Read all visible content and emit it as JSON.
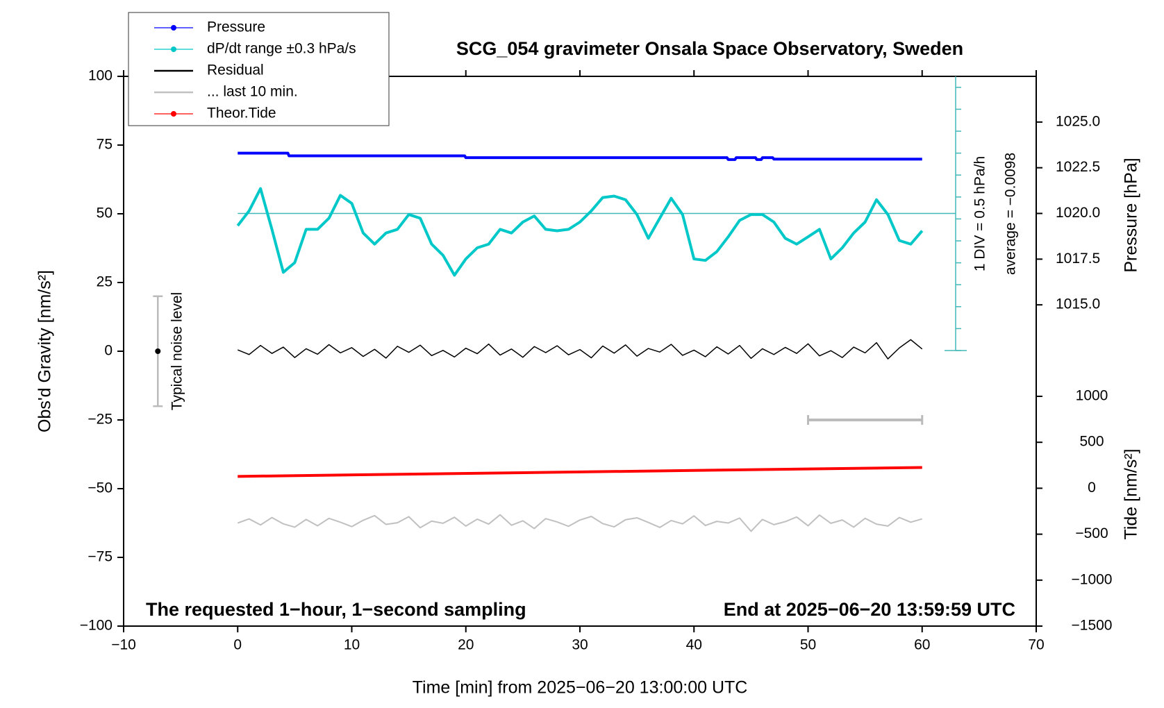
{
  "chart_data": {
    "type": "line",
    "title": "SCG_054 gravimeter Onsala Space Observatory, Sweden",
    "xlabel": "Time [min] from 2025−06−20 13:00:00 UTC",
    "ylabel": "Obs'd Gravity [nm/s²]",
    "y2label": "Pressure [hPa]",
    "y3label": "Tide [nm/s²]",
    "annotations": {
      "left": "The requested 1−hour, 1−second sampling",
      "right": "End at 2025−06−20 13:59:59 UTC",
      "noise": "Typical noise level",
      "scale": "1 DIV = 0.5 hPa/h",
      "average": "average = −0.0098"
    },
    "xlim": [
      -10,
      70
    ],
    "xticks": [
      {
        "value": -10,
        "label": "−10"
      },
      0,
      10,
      20,
      30,
      40,
      50,
      60,
      70
    ],
    "ylim": [
      -100,
      100
    ],
    "yticks": [
      {
        "value": -100,
        "label": "−100"
      },
      {
        "value": -75,
        "label": "−75"
      },
      {
        "value": -50,
        "label": "−50"
      },
      {
        "value": -25,
        "label": "−25"
      },
      0,
      25,
      50,
      75,
      100
    ],
    "y2lim": [
      1012.5,
      1027.5
    ],
    "y2ticks": [
      {
        "value": 1015,
        "label": "1015.0"
      },
      {
        "value": 1017.5,
        "label": "1017.5"
      },
      {
        "value": 1020,
        "label": "1020.0"
      },
      {
        "value": 1022.5,
        "label": "1022.5"
      },
      {
        "value": 1025,
        "label": "1025.0"
      }
    ],
    "y3lim": [
      -1500,
      1000
    ],
    "y3ticks": [
      {
        "value": -1500,
        "label": "−1500"
      },
      {
        "value": -1000,
        "label": "−1000"
      },
      {
        "value": -500,
        "label": "−500"
      },
      0,
      500,
      1000
    ],
    "y2_reference": 1020,
    "noise_bar": {
      "x": -7,
      "range": [
        -20,
        20
      ]
    },
    "last10_bar": {
      "range": [
        50,
        60
      ],
      "y": -25
    },
    "series": [
      {
        "name": "Pressure",
        "color": "#0000ff",
        "axis": "y2",
        "marker": true,
        "width": 4,
        "x": [
          0,
          4.4,
          4.5,
          19.9,
          20,
          42.9,
          43,
          43.6,
          43.7,
          45.4,
          45.5,
          45.9,
          46,
          46.9,
          47,
          60
        ],
        "values": [
          1023.3,
          1023.3,
          1023.15,
          1023.15,
          1023.05,
          1023.05,
          1022.95,
          1022.95,
          1023.05,
          1023.05,
          1022.95,
          1022.95,
          1023.05,
          1023.05,
          1022.97,
          1022.97
        ]
      },
      {
        "name": "dP/dt range ±0.3 hPa/s",
        "color": "#00c8c8",
        "axis": "y2",
        "marker": true,
        "width": 4,
        "x": [
          0,
          1,
          2,
          3,
          4,
          5,
          6,
          7,
          8,
          9,
          10,
          11,
          12,
          13,
          14,
          15,
          16,
          17,
          18,
          19,
          20,
          21,
          22,
          23,
          24,
          25,
          26,
          27,
          28,
          29,
          30,
          31,
          32,
          33,
          34,
          35,
          36,
          37,
          38,
          39,
          40,
          41,
          42,
          43,
          44,
          45,
          46,
          47,
          48,
          49,
          50,
          51,
          52,
          53,
          54,
          55,
          56,
          57,
          58,
          59,
          60
        ],
        "values": [
          1019.33,
          1020.14,
          1021.36,
          1019.13,
          1016.78,
          1017.31,
          1019.13,
          1019.13,
          1019.74,
          1020.99,
          1020.55,
          1018.93,
          1018.32,
          1018.93,
          1019.13,
          1019.94,
          1019.74,
          1018.32,
          1017.71,
          1016.62,
          1017.51,
          1018.12,
          1018.32,
          1019.13,
          1018.93,
          1019.53,
          1019.86,
          1019.13,
          1019.05,
          1019.13,
          1019.53,
          1020.14,
          1020.87,
          1020.95,
          1020.75,
          1019.94,
          1018.64,
          1019.74,
          1020.83,
          1019.94,
          1017.51,
          1017.43,
          1017.91,
          1018.72,
          1019.62,
          1019.94,
          1019.94,
          1019.53,
          1018.64,
          1018.32,
          1018.72,
          1019.13,
          1017.51,
          1018.12,
          1018.93,
          1019.53,
          1020.75,
          1019.94,
          1018.52,
          1018.32,
          1019.05
        ]
      },
      {
        "name": "Residual",
        "color": "#000000",
        "marker": false,
        "width": 1.5,
        "x": [
          0,
          1,
          2,
          3,
          4,
          5,
          6,
          7,
          8,
          9,
          10,
          11,
          12,
          13,
          14,
          15,
          16,
          17,
          18,
          19,
          20,
          21,
          22,
          23,
          24,
          25,
          26,
          27,
          28,
          29,
          30,
          31,
          32,
          33,
          34,
          35,
          36,
          37,
          38,
          39,
          40,
          41,
          42,
          43,
          44,
          45,
          46,
          47,
          48,
          49,
          50,
          51,
          52,
          53,
          54,
          55,
          56,
          57,
          58,
          59,
          60
        ],
        "values": [
          0.5,
          -1.2,
          2.1,
          -0.8,
          1.5,
          -2.3,
          0.9,
          -1.1,
          2.4,
          -0.6,
          1.3,
          -1.9,
          0.7,
          -2.5,
          1.8,
          -0.4,
          2.2,
          -1.6,
          0.3,
          -2.1,
          1.1,
          -0.9,
          2.6,
          -1.4,
          0.8,
          -2.2,
          1.7,
          -0.5,
          2.0,
          -1.3,
          0.6,
          -2.4,
          1.9,
          -0.7,
          2.3,
          -1.8,
          1.0,
          -0.3,
          2.5,
          -1.5,
          0.4,
          -2.0,
          1.6,
          -1.0,
          2.1,
          -2.6,
          0.9,
          -1.2,
          1.4,
          -0.8,
          2.7,
          -1.7,
          0.2,
          -2.3,
          1.5,
          -0.6,
          3.1,
          -2.8,
          1.2,
          4.2,
          0.8
        ]
      },
      {
        "name": "... last 10 min.",
        "color": "#c0c0c0",
        "marker": false,
        "width": 2,
        "x": [
          0,
          1,
          2,
          3,
          4,
          5,
          6,
          7,
          8,
          9,
          10,
          11,
          12,
          13,
          14,
          15,
          16,
          17,
          18,
          19,
          20,
          21,
          22,
          23,
          24,
          25,
          26,
          27,
          28,
          29,
          30,
          31,
          32,
          33,
          34,
          35,
          36,
          37,
          38,
          39,
          40,
          41,
          42,
          43,
          44,
          45,
          46,
          47,
          48,
          49,
          50,
          51,
          52,
          53,
          54,
          55,
          56,
          57,
          58,
          59,
          60
        ],
        "values": [
          -62.5,
          -61,
          -63.2,
          -60.5,
          -62.8,
          -64,
          -61.2,
          -63.5,
          -60.8,
          -62.2,
          -63.8,
          -61.5,
          -59.8,
          -63,
          -62.4,
          -60.2,
          -64.2,
          -61.8,
          -62.6,
          -60.4,
          -63.6,
          -61.1,
          -62.9,
          -59.5,
          -63.3,
          -61.7,
          -64.5,
          -60.9,
          -62.1,
          -63.7,
          -61.4,
          -60.1,
          -62.7,
          -63.9,
          -61.3,
          -60.6,
          -62.3,
          -64.1,
          -61.6,
          -62.8,
          -59.9,
          -63.4,
          -61.9,
          -62.5,
          -60.7,
          -65.5,
          -61.2,
          -63.1,
          -62,
          -60.3,
          -63.5,
          -59.6,
          -62.6,
          -61.4,
          -64,
          -60.8,
          -62.9,
          -63.6,
          -60.5,
          -62.2,
          -61
        ]
      },
      {
        "name": "Theor.Tide",
        "color": "#ff0000",
        "axis": "y3",
        "marker": true,
        "width": 4,
        "x": [
          0,
          60
        ],
        "values": [
          129,
          226
        ]
      }
    ]
  }
}
